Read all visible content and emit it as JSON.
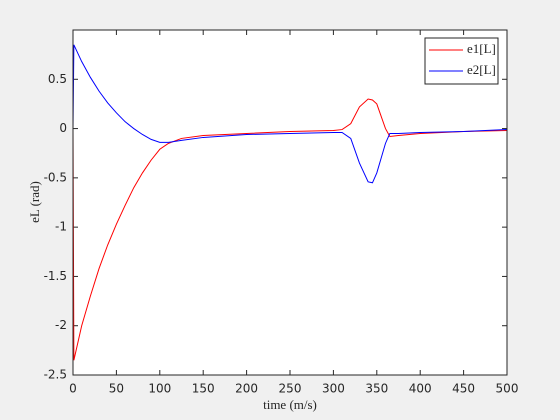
{
  "chart_data": {
    "type": "line",
    "xlabel": "time (m/s)",
    "ylabel": "eL (rad)",
    "x": [
      0,
      1,
      10,
      20,
      30,
      40,
      50,
      60,
      70,
      80,
      90,
      100,
      110,
      125,
      150,
      200,
      250,
      300,
      310,
      320,
      330,
      340,
      345,
      350,
      360,
      365,
      375,
      400,
      450,
      500
    ],
    "series": [
      {
        "name": "e1[L]",
        "color": "#ff0000",
        "values": [
          0,
          -2.35,
          -2.0,
          -1.7,
          -1.42,
          -1.18,
          -0.97,
          -0.78,
          -0.6,
          -0.45,
          -0.32,
          -0.21,
          -0.15,
          -0.1,
          -0.07,
          -0.05,
          -0.03,
          -0.02,
          -0.01,
          0.05,
          0.22,
          0.3,
          0.29,
          0.25,
          0.0,
          -0.08,
          -0.07,
          -0.05,
          -0.03,
          -0.02
        ]
      },
      {
        "name": "e2[L]",
        "color": "#0000ff",
        "values": [
          0,
          0.85,
          0.68,
          0.52,
          0.38,
          0.26,
          0.16,
          0.07,
          0.0,
          -0.06,
          -0.11,
          -0.14,
          -0.14,
          -0.12,
          -0.09,
          -0.06,
          -0.05,
          -0.04,
          -0.04,
          -0.1,
          -0.35,
          -0.54,
          -0.55,
          -0.45,
          -0.15,
          -0.05,
          -0.05,
          -0.04,
          -0.03,
          -0.01
        ]
      }
    ],
    "xlim": [
      0,
      500
    ],
    "xticks": [
      0,
      50,
      100,
      150,
      200,
      250,
      300,
      350,
      400,
      450,
      500
    ],
    "ylim": [
      -2.5,
      1
    ],
    "yticks": [
      -2.5,
      -2,
      -1.5,
      -1,
      -0.5,
      0,
      0.5
    ],
    "legend": "upper-right"
  }
}
